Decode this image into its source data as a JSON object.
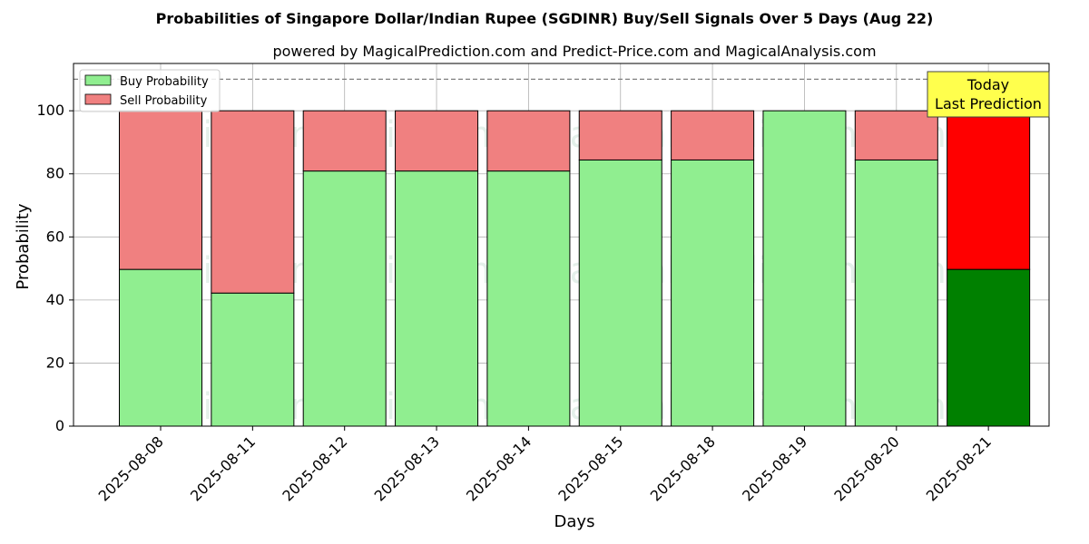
{
  "chart_data": {
    "type": "bar",
    "stacked": true,
    "title": "Probabilities of Singapore Dollar/Indian Rupee (SGDINR) Buy/Sell Signals Over 5 Days (Aug 22)",
    "subtitle": "powered by MagicalPrediction.com and Predict-Price.com and MagicalAnalysis.com",
    "xlabel": "Days",
    "ylabel": "Probability",
    "ylim": [
      0,
      115
    ],
    "yticks": [
      0,
      20,
      40,
      60,
      80,
      100
    ],
    "reference_line": 110,
    "grid": true,
    "legend_position": "top-left",
    "categories": [
      "2025-08-08",
      "2025-08-11",
      "2025-08-12",
      "2025-08-13",
      "2025-08-14",
      "2025-08-15",
      "2025-08-18",
      "2025-08-19",
      "2025-08-20",
      "2025-08-21"
    ],
    "series": [
      {
        "name": "Buy Probability",
        "color": "#90ee90",
        "values": [
          49.7,
          42.2,
          80.9,
          80.9,
          80.9,
          84.4,
          84.4,
          100.0,
          84.4,
          49.7
        ]
      },
      {
        "name": "Sell Probability",
        "color": "#f08080",
        "values": [
          50.3,
          57.8,
          19.1,
          19.1,
          19.1,
          15.6,
          15.6,
          0.0,
          15.6,
          50.3
        ]
      }
    ],
    "highlight": {
      "index": 9,
      "buy_color": "#008000",
      "sell_color": "#ff0000"
    },
    "annotation": {
      "line1": "Today",
      "line2": "Last Prediction",
      "color": "#ffff4d"
    },
    "watermarks": [
      "MagicalAnalysis.com",
      "MagicalPrediction.com"
    ]
  }
}
